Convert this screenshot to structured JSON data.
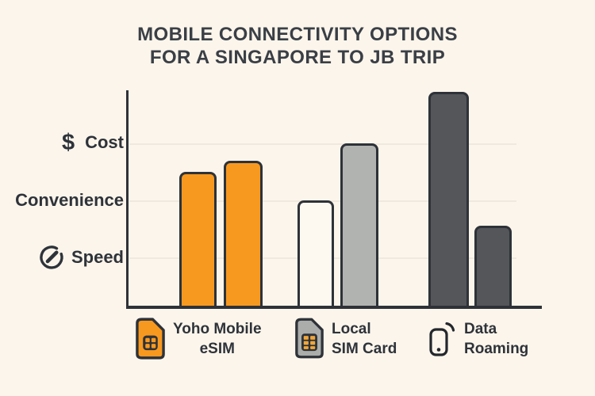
{
  "title": {
    "line1": "MOBILE CONNECTIVITY OPTIONS",
    "line2": "FOR A SINGAPORE TO JB TRIP"
  },
  "y_axis": {
    "cost_symbol": "$"
  },
  "legend": {
    "items": [
      {
        "line1": "Yoho Mobile",
        "line2": "eSIM",
        "icon": "sim-card-orange-icon",
        "color": "#F8991F"
      },
      {
        "line1": "Local",
        "line2": "SIM Card",
        "icon": "sim-card-gray-icon",
        "color": "#ABADAB"
      },
      {
        "line1": "Data",
        "line2": "Roaming",
        "icon": "phone-roaming-icon",
        "color": "#54565A"
      }
    ]
  },
  "colors": {
    "background": "#FCF5EB",
    "axis": "#2E3238",
    "gridline": "#EFE9DF",
    "title_text": "#3A3F46",
    "label_text": "#2E333A",
    "orange": "#F8991F",
    "light_gray": "#B1B3B1",
    "dark_gray": "#54565A",
    "cream_white": "#FEF9F0",
    "chip_gold": "#F0A73C"
  },
  "chart_data": {
    "type": "bar",
    "title": "Mobile Connectivity Options for a Singapore to JB Trip",
    "categories": [
      "Yoho Mobile eSIM",
      "Local SIM Card",
      "Data Roaming"
    ],
    "series": [
      {
        "name": "bar-left",
        "values": [
          2.5,
          2.0,
          3.9
        ]
      },
      {
        "name": "bar-right",
        "values": [
          2.7,
          3.0,
          1.55
        ]
      }
    ],
    "bar_colors": [
      [
        "#F8991F",
        "#F8991F"
      ],
      [
        "#FEF9F0",
        "#B1B3B1"
      ],
      [
        "#54565A",
        "#54565A"
      ]
    ],
    "yticks": [
      {
        "value": 3,
        "label": "Cost",
        "icon": "dollar-icon"
      },
      {
        "value": 2,
        "label": "Convenience",
        "icon": null
      },
      {
        "value": 1,
        "label": "Speed",
        "icon": "gauge-icon"
      }
    ],
    "ylim": [
      0,
      3.9
    ],
    "axis_type": "qualitative",
    "grid": true,
    "legend_position": "bottom"
  }
}
